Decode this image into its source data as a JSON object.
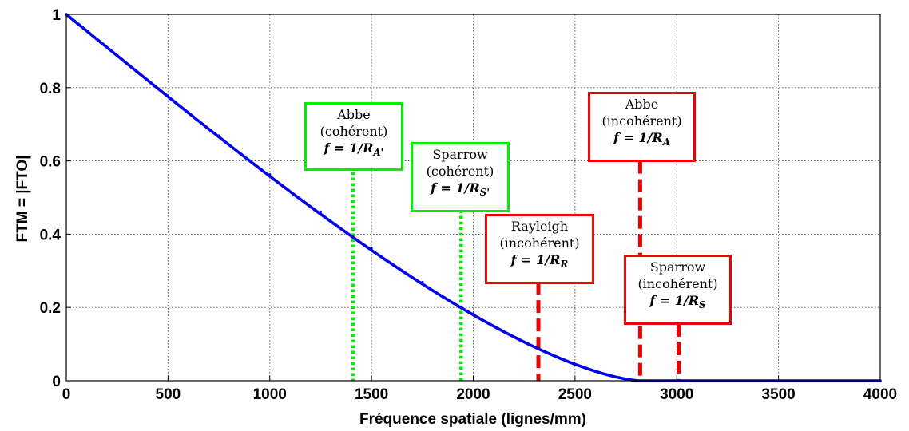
{
  "chart_data": {
    "type": "line",
    "xlabel": "Fréquence spatiale (lignes/mm)",
    "ylabel": "FTM = |FTO|",
    "xlim": [
      0,
      4000
    ],
    "ylim": [
      0,
      1
    ],
    "xticks": [
      "0",
      "500",
      "1000",
      "1500",
      "2000",
      "2500",
      "3000",
      "3500",
      "4000"
    ],
    "yticks": [
      "0",
      "0.2",
      "0.4",
      "0.6",
      "0.8",
      "1"
    ],
    "grid": true,
    "cutoff_frequency": 2820,
    "series": [
      {
        "color": "#0000ee",
        "x": [
          0,
          250,
          500,
          750,
          1000,
          1250,
          1500,
          1750,
          2000,
          2250,
          2500,
          2750,
          2820,
          3000,
          3500,
          4000
        ],
        "y": [
          1.0,
          0.888,
          0.778,
          0.669,
          0.563,
          0.461,
          0.362,
          0.269,
          0.183,
          0.106,
          0.044,
          0.004,
          0.0,
          0.0,
          0.0,
          0.0
        ]
      }
    ],
    "annotations": [
      {
        "id": "abbe-coherent",
        "x": 1410,
        "style": "dotted",
        "color": "#00ee00",
        "line_top": 0.585,
        "line_bottom": 0,
        "lines": [
          "Abbe",
          "(cohérent)"
        ],
        "formula": "f = 1/R",
        "subscript": "A'"
      },
      {
        "id": "sparrow-coherent",
        "x": 1940,
        "style": "dotted",
        "color": "#00ee00",
        "line_top": 0.465,
        "line_bottom": 0,
        "lines": [
          "Sparrow",
          "(cohérent)"
        ],
        "formula": "f = 1/R",
        "subscript": "S'"
      },
      {
        "id": "rayleigh-incoherent",
        "x": 2320,
        "style": "dashed",
        "color": "#ee0000",
        "line_top": 0.27,
        "line_bottom": 0,
        "lines": [
          "Rayleigh",
          "(incohérent)"
        ],
        "formula": "f = 1/R",
        "subscript": "R"
      },
      {
        "id": "abbe-incoherent",
        "x": 2820,
        "style": "dashed",
        "color": "#ee0000",
        "line_top": 0.6,
        "line_bottom": 0,
        "lines": [
          "Abbe",
          "(incohérent)"
        ],
        "formula": "f = 1/R",
        "subscript": "A"
      },
      {
        "id": "sparrow-incoherent",
        "x": 3010,
        "style": "dashed",
        "color": "#ee0000",
        "line_top": 0.155,
        "line_bottom": 0,
        "lines": [
          "Sparrow",
          "(incohérent)"
        ],
        "formula": "f = 1/R",
        "subscript": "S"
      }
    ]
  }
}
